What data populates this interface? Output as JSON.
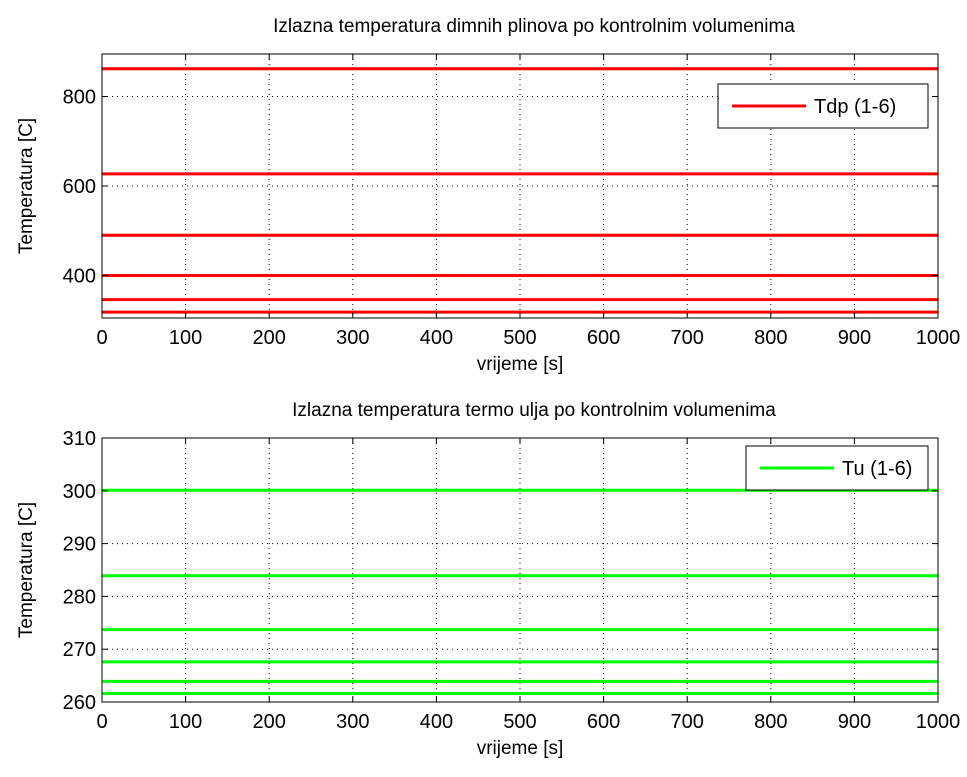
{
  "chart_data": [
    {
      "type": "line",
      "title": "Izlazna temperatura dimnih plinova po kontrolnim volumenima",
      "xlabel": "vrijeme [s]",
      "ylabel": "Temperatura [C]",
      "xlim": [
        0,
        1000
      ],
      "ylim": [
        305,
        895
      ],
      "xticks": [
        0,
        100,
        200,
        300,
        400,
        500,
        600,
        700,
        800,
        900,
        1000
      ],
      "yticks": [
        400,
        600,
        800
      ],
      "grid": true,
      "legend_position": "top-right",
      "legend": [
        "Tdp (1-6)"
      ],
      "color": "#ff0000",
      "series": [
        {
          "name": "Tdp (1-6)",
          "x": [
            0,
            1000
          ],
          "values": [
            862,
            862
          ]
        },
        {
          "x": [
            0,
            1000
          ],
          "values": [
            627,
            627
          ]
        },
        {
          "x": [
            0,
            1000
          ],
          "values": [
            490,
            490
          ]
        },
        {
          "x": [
            0,
            1000
          ],
          "values": [
            400,
            400
          ]
        },
        {
          "x": [
            0,
            1000
          ],
          "values": [
            346,
            346
          ]
        },
        {
          "x": [
            0,
            1000
          ],
          "values": [
            318,
            318
          ]
        }
      ]
    },
    {
      "type": "line",
      "title": "Izlazna temperatura termo ulja po kontrolnim volumenima",
      "xlabel": "vrijeme [s]",
      "ylabel": "Temperatura [C]",
      "xlim": [
        0,
        1000
      ],
      "ylim": [
        260,
        310
      ],
      "xticks": [
        0,
        100,
        200,
        300,
        400,
        500,
        600,
        700,
        800,
        900,
        1000
      ],
      "yticks": [
        260,
        270,
        280,
        290,
        300,
        310
      ],
      "grid": true,
      "legend_position": "top-right",
      "legend": [
        "Tu (1-6)"
      ],
      "color": "#00ff00",
      "series": [
        {
          "name": "Tu (1-6)",
          "x": [
            0,
            1000
          ],
          "values": [
            300.1,
            300.1
          ]
        },
        {
          "x": [
            0,
            1000
          ],
          "values": [
            283.9,
            283.9
          ]
        },
        {
          "x": [
            0,
            1000
          ],
          "values": [
            273.7,
            273.7
          ]
        },
        {
          "x": [
            0,
            1000
          ],
          "values": [
            267.6,
            267.6
          ]
        },
        {
          "x": [
            0,
            1000
          ],
          "values": [
            263.9,
            263.9
          ]
        },
        {
          "x": [
            0,
            1000
          ],
          "values": [
            261.6,
            261.6
          ]
        }
      ]
    }
  ]
}
